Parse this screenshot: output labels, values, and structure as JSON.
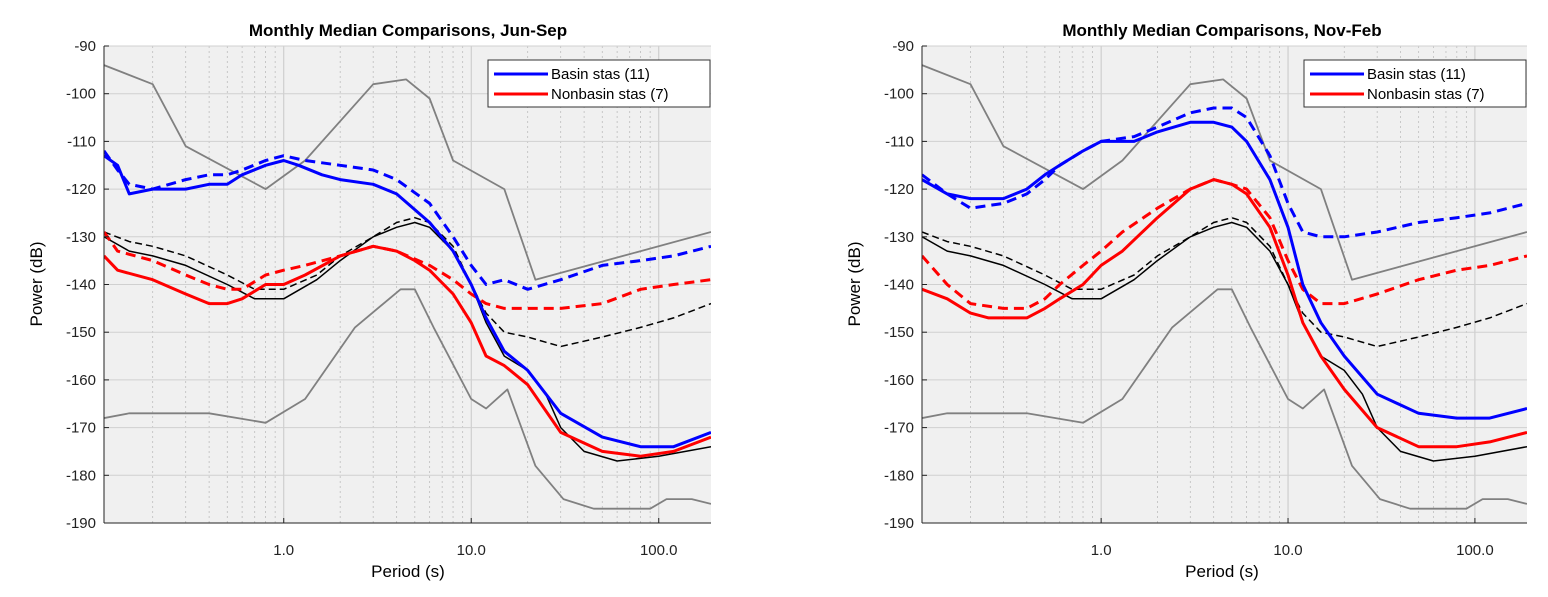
{
  "chart_data": [
    {
      "type": "line",
      "title": "Monthly Median Comparisons, Jun-Sep",
      "xlabel": "Period (s)",
      "ylabel": "Power (dB)",
      "xscale": "log",
      "xlim": [
        0.11,
        190
      ],
      "ylim": [
        -190,
        -90
      ],
      "xticks": [
        1,
        10,
        100
      ],
      "xtick_labels": [
        "1.0",
        "10.0",
        "100.0"
      ],
      "yticks": [
        -90,
        -100,
        -110,
        -120,
        -130,
        -140,
        -150,
        -160,
        -170,
        -180,
        -190
      ],
      "grid": true,
      "legend_position": "top-right",
      "legend": [
        {
          "label": "Basin stas (11)",
          "color": "#0000ff"
        },
        {
          "label": "Nonbasin stas (7)",
          "color": "#ff0000"
        }
      ],
      "series": [
        {
          "name": "Basin stas (11)",
          "color": "#0000ff",
          "style": "solid",
          "x": [
            0.11,
            0.13,
            0.15,
            0.2,
            0.3,
            0.4,
            0.5,
            0.6,
            0.8,
            1.0,
            1.2,
            1.6,
            2.0,
            3.0,
            4.0,
            6.0,
            8.0,
            10.0,
            12.0,
            15.0,
            20.0,
            30.0,
            50.0,
            80.0,
            120.0,
            190.0
          ],
          "y": [
            -113,
            -115,
            -121,
            -120,
            -120,
            -119,
            -119,
            -117,
            -115,
            -114,
            -115,
            -117,
            -118,
            -119,
            -121,
            -127,
            -133,
            -140,
            -147,
            -154,
            -158,
            -167,
            -172,
            -174,
            -174,
            -171
          ]
        },
        {
          "name": "Basin stas (11)",
          "color": "#0000ff",
          "style": "dashed",
          "x": [
            0.11,
            0.13,
            0.15,
            0.2,
            0.3,
            0.4,
            0.5,
            0.6,
            0.8,
            1.0,
            1.3,
            2.0,
            3.0,
            4.0,
            6.0,
            8.0,
            10.0,
            12.0,
            15.0,
            20.0,
            30.0,
            50.0,
            80.0,
            120.0,
            190.0
          ],
          "y": [
            -112,
            -116,
            -119,
            -120,
            -118,
            -117,
            -117,
            -116,
            -114,
            -113,
            -114,
            -115,
            -116,
            -118,
            -123,
            -130,
            -136,
            -140,
            -139,
            -141,
            -139,
            -136,
            -135,
            -134,
            -132
          ]
        },
        {
          "name": "Nonbasin stas (7)",
          "color": "#ff0000",
          "style": "solid",
          "x": [
            0.11,
            0.13,
            0.2,
            0.3,
            0.4,
            0.5,
            0.6,
            0.8,
            1.0,
            1.3,
            2.0,
            3.0,
            4.0,
            5.0,
            6.0,
            8.0,
            10.0,
            12.0,
            15.0,
            20.0,
            30.0,
            50.0,
            80.0,
            120.0,
            190.0
          ],
          "y": [
            -134,
            -137,
            -139,
            -142,
            -144,
            -144,
            -143,
            -140,
            -140,
            -138,
            -134,
            -132,
            -133,
            -135,
            -137,
            -142,
            -148,
            -155,
            -157,
            -161,
            -171,
            -175,
            -176,
            -175,
            -172
          ]
        },
        {
          "name": "Nonbasin stas (7)",
          "color": "#ff0000",
          "style": "dashed",
          "x": [
            0.11,
            0.13,
            0.2,
            0.3,
            0.4,
            0.5,
            0.6,
            0.8,
            1.0,
            1.3,
            2.0,
            3.0,
            4.0,
            6.0,
            8.0,
            10.0,
            12.0,
            15.0,
            20.0,
            30.0,
            50.0,
            80.0,
            120.0,
            190.0
          ],
          "y": [
            -129,
            -133,
            -135,
            -138,
            -140,
            -141,
            -141,
            -138,
            -137,
            -136,
            -134,
            -132,
            -133,
            -136,
            -139,
            -142,
            -144,
            -145,
            -145,
            -145,
            -144,
            -141,
            -140,
            -139
          ]
        },
        {
          "name": "",
          "color": "#000000",
          "style": "solid",
          "x": [
            0.11,
            0.15,
            0.2,
            0.3,
            0.5,
            0.7,
            1.0,
            1.5,
            2.0,
            3.0,
            4.0,
            5.0,
            6.0,
            8.0,
            10.0,
            12.0,
            15.0,
            20.0,
            25.0,
            30.0,
            40.0,
            60.0,
            100.0,
            190.0
          ],
          "y": [
            -130,
            -133,
            -134,
            -136,
            -140,
            -143,
            -143,
            -139,
            -135,
            -130,
            -128,
            -127,
            -128,
            -133,
            -140,
            -148,
            -155,
            -158,
            -163,
            -170,
            -175,
            -177,
            -176,
            -174
          ]
        },
        {
          "name": "",
          "color": "#000000",
          "style": "dashed",
          "x": [
            0.11,
            0.15,
            0.2,
            0.3,
            0.5,
            0.7,
            1.0,
            1.5,
            2.0,
            3.0,
            4.0,
            5.0,
            6.0,
            8.0,
            10.0,
            12.0,
            15.0,
            20.0,
            30.0,
            50.0,
            80.0,
            120.0,
            190.0
          ],
          "y": [
            -129,
            -131,
            -132,
            -134,
            -138,
            -141,
            -141,
            -138,
            -134,
            -130,
            -127,
            -126,
            -127,
            -132,
            -140,
            -146,
            -150,
            -151,
            -153,
            -151,
            -149,
            -147,
            -144
          ]
        },
        {
          "name": "",
          "color": "#808080",
          "style": "solid",
          "x": [
            0.11,
            0.2,
            0.3,
            0.8,
            1.3,
            3.0,
            4.5,
            6.0,
            8.0,
            15.0,
            22.0,
            190.0
          ],
          "y": [
            -94,
            -98,
            -111,
            -120,
            -114,
            -98,
            -97,
            -101,
            -114,
            -120,
            -139,
            -129
          ]
        },
        {
          "name": "",
          "color": "#808080",
          "style": "solid",
          "x": [
            0.11,
            0.15,
            0.4,
            0.8,
            1.3,
            2.4,
            4.2,
            5.0,
            6.3,
            10.0,
            12.0,
            15.6,
            22.0,
            31.0,
            45.0,
            90.0,
            110.0,
            150.0,
            190.0
          ],
          "y": [
            -168,
            -167,
            -167,
            -169,
            -164,
            -149,
            -141,
            -141,
            -149,
            -164,
            -166,
            -162,
            -178,
            -185,
            -187,
            -187,
            -185,
            -185,
            -186
          ]
        }
      ]
    },
    {
      "type": "line",
      "title": "Monthly Median Comparisons, Nov-Feb",
      "xlabel": "Period (s)",
      "ylabel": "Power (dB)",
      "xscale": "log",
      "xlim": [
        0.11,
        190
      ],
      "ylim": [
        -190,
        -90
      ],
      "xticks": [
        1,
        10,
        100
      ],
      "xtick_labels": [
        "1.0",
        "10.0",
        "100.0"
      ],
      "yticks": [
        -90,
        -100,
        -110,
        -120,
        -130,
        -140,
        -150,
        -160,
        -170,
        -180,
        -190
      ],
      "grid": true,
      "legend_position": "top-right",
      "legend": [
        {
          "label": "Basin stas (11)",
          "color": "#0000ff"
        },
        {
          "label": "Nonbasin stas (7)",
          "color": "#ff0000"
        }
      ],
      "series": [
        {
          "name": "Basin stas (11)",
          "color": "#0000ff",
          "style": "solid",
          "x": [
            0.11,
            0.15,
            0.2,
            0.3,
            0.4,
            0.5,
            0.6,
            0.8,
            1.0,
            1.5,
            2.0,
            3.0,
            4.0,
            5.0,
            6.0,
            8.0,
            10.0,
            12.0,
            15.0,
            20.0,
            30.0,
            50.0,
            80.0,
            120.0,
            190.0
          ],
          "y": [
            -118,
            -121,
            -122,
            -122,
            -120,
            -117,
            -115,
            -112,
            -110,
            -110,
            -108,
            -106,
            -106,
            -107,
            -110,
            -118,
            -128,
            -140,
            -148,
            -155,
            -163,
            -167,
            -168,
            -168,
            -166
          ]
        },
        {
          "name": "Basin stas (11)",
          "color": "#0000ff",
          "style": "dashed",
          "x": [
            0.11,
            0.15,
            0.2,
            0.3,
            0.4,
            0.5,
            0.6,
            0.8,
            1.0,
            1.5,
            2.0,
            3.0,
            4.0,
            5.0,
            6.0,
            8.0,
            10.0,
            12.0,
            15.0,
            20.0,
            30.0,
            50.0,
            80.0,
            120.0,
            190.0
          ],
          "y": [
            -117,
            -121,
            -124,
            -123,
            -121,
            -118,
            -115,
            -112,
            -110,
            -109,
            -107,
            -104,
            -103,
            -103,
            -105,
            -113,
            -123,
            -129,
            -130,
            -130,
            -129,
            -127,
            -126,
            -125,
            -123
          ]
        },
        {
          "name": "Nonbasin stas (7)",
          "color": "#ff0000",
          "style": "solid",
          "x": [
            0.11,
            0.15,
            0.2,
            0.25,
            0.3,
            0.4,
            0.5,
            0.6,
            0.8,
            1.0,
            1.3,
            2.0,
            3.0,
            4.0,
            5.0,
            6.0,
            8.0,
            10.0,
            12.0,
            15.0,
            20.0,
            30.0,
            50.0,
            80.0,
            120.0,
            190.0
          ],
          "y": [
            -141,
            -143,
            -146,
            -147,
            -147,
            -147,
            -145,
            -143,
            -140,
            -136,
            -133,
            -126,
            -120,
            -118,
            -119,
            -121,
            -128,
            -138,
            -148,
            -155,
            -162,
            -170,
            -174,
            -174,
            -173,
            -171
          ]
        },
        {
          "name": "Nonbasin stas (7)",
          "color": "#ff0000",
          "style": "dashed",
          "x": [
            0.11,
            0.15,
            0.2,
            0.3,
            0.4,
            0.5,
            0.6,
            0.8,
            1.0,
            1.3,
            2.0,
            3.0,
            4.0,
            5.0,
            6.0,
            8.0,
            10.0,
            12.0,
            15.0,
            20.0,
            30.0,
            50.0,
            80.0,
            120.0,
            190.0
          ],
          "y": [
            -134,
            -140,
            -144,
            -145,
            -145,
            -143,
            -140,
            -136,
            -133,
            -129,
            -124,
            -120,
            -118,
            -119,
            -120,
            -126,
            -135,
            -141,
            -144,
            -144,
            -142,
            -139,
            -137,
            -136,
            -134
          ]
        },
        {
          "name": "",
          "color": "#000000",
          "style": "solid",
          "x": [
            0.11,
            0.15,
            0.2,
            0.3,
            0.5,
            0.7,
            1.0,
            1.5,
            2.0,
            3.0,
            4.0,
            5.0,
            6.0,
            8.0,
            10.0,
            12.0,
            15.0,
            20.0,
            25.0,
            30.0,
            40.0,
            60.0,
            100.0,
            190.0
          ],
          "y": [
            -130,
            -133,
            -134,
            -136,
            -140,
            -143,
            -143,
            -139,
            -135,
            -130,
            -128,
            -127,
            -128,
            -133,
            -140,
            -148,
            -155,
            -158,
            -163,
            -170,
            -175,
            -177,
            -176,
            -174
          ]
        },
        {
          "name": "",
          "color": "#000000",
          "style": "dashed",
          "x": [
            0.11,
            0.15,
            0.2,
            0.3,
            0.5,
            0.7,
            1.0,
            1.5,
            2.0,
            3.0,
            4.0,
            5.0,
            6.0,
            8.0,
            10.0,
            12.0,
            15.0,
            20.0,
            30.0,
            50.0,
            80.0,
            120.0,
            190.0
          ],
          "y": [
            -129,
            -131,
            -132,
            -134,
            -138,
            -141,
            -141,
            -138,
            -134,
            -130,
            -127,
            -126,
            -127,
            -132,
            -140,
            -146,
            -150,
            -151,
            -153,
            -151,
            -149,
            -147,
            -144
          ]
        },
        {
          "name": "",
          "color": "#808080",
          "style": "solid",
          "x": [
            0.11,
            0.2,
            0.3,
            0.8,
            1.3,
            3.0,
            4.5,
            6.0,
            8.0,
            15.0,
            22.0,
            190.0
          ],
          "y": [
            -94,
            -98,
            -111,
            -120,
            -114,
            -98,
            -97,
            -101,
            -114,
            -120,
            -139,
            -129
          ]
        },
        {
          "name": "",
          "color": "#808080",
          "style": "solid",
          "x": [
            0.11,
            0.15,
            0.4,
            0.8,
            1.3,
            2.4,
            4.2,
            5.0,
            6.3,
            10.0,
            12.0,
            15.6,
            22.0,
            31.0,
            45.0,
            90.0,
            110.0,
            150.0,
            190.0
          ],
          "y": [
            -168,
            -167,
            -167,
            -169,
            -164,
            -149,
            -141,
            -141,
            -149,
            -164,
            -166,
            -162,
            -178,
            -185,
            -187,
            -187,
            -185,
            -185,
            -186
          ]
        }
      ]
    }
  ]
}
